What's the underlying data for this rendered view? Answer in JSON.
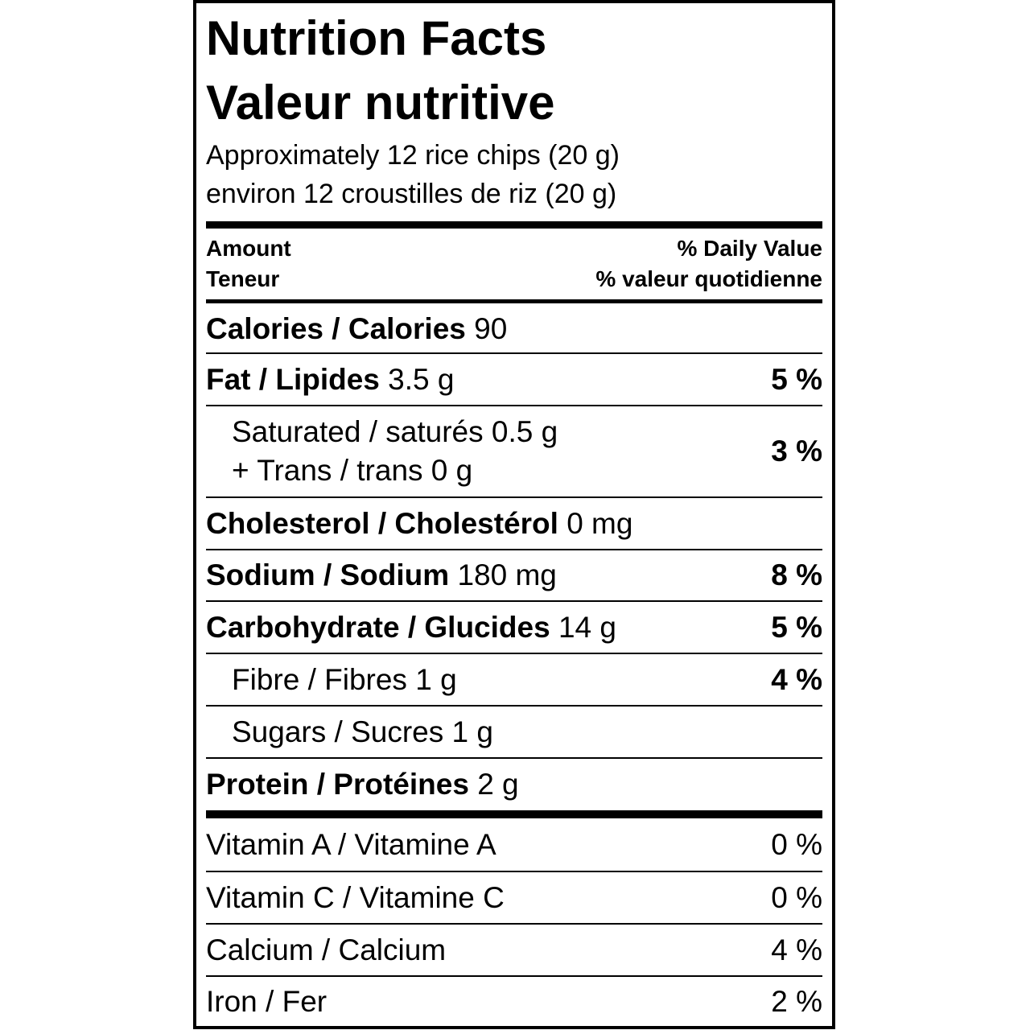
{
  "header": {
    "title": "Nutrition Facts",
    "title_fr": "Valeur nutritive",
    "serving": "Approximately 12 rice chips (20 g)",
    "serving_fr": "environ 12 croustilles de riz (20 g)"
  },
  "columns": {
    "amount": "Amount",
    "amount_fr": "Teneur",
    "dv": "% Daily Value",
    "dv_fr": "% valeur quotidienne"
  },
  "rows": [
    {
      "label": "Calories / Calories",
      "amount": "90"
    },
    {
      "label": "Fat / Lipides",
      "amount": "3.5 g",
      "dv": "5 %"
    },
    {
      "lines": [
        "Saturated / saturés 0.5 g",
        "+ Trans / trans 0 g"
      ],
      "dv": "3 %"
    },
    {
      "label": "Cholesterol / Cholestérol",
      "amount": "0 mg"
    },
    {
      "label": "Sodium / Sodium",
      "amount": "180 mg",
      "dv": "8 %"
    },
    {
      "label": "Carbohydrate / Glucides",
      "amount": "14 g",
      "dv": "5 %"
    },
    {
      "label": "Fibre / Fibres",
      "amount": "1 g",
      "dv": "4 %"
    },
    {
      "label": "Sugars / Sucres",
      "amount": "1 g"
    },
    {
      "label": "Protein / Protéines",
      "amount": "2 g"
    }
  ],
  "vitamins": [
    {
      "label": "Vitamin A / Vitamine A",
      "dv": "0 %"
    },
    {
      "label": "Vitamin C / Vitamine C",
      "dv": "0 %"
    },
    {
      "label": "Calcium / Calcium",
      "dv": "4 %"
    },
    {
      "label": "Iron / Fer",
      "dv": "2 %"
    }
  ]
}
